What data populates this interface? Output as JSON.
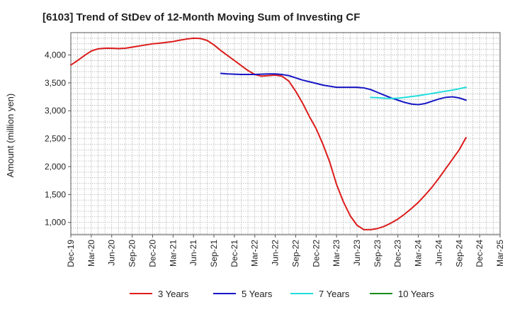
{
  "chart_data": {
    "type": "line",
    "title": "[6103]  Trend of StDev of 12-Month Moving Sum of Investing CF",
    "ylabel": "Amount (million yen)",
    "xlabel": "",
    "ylim": [
      780,
      4400
    ],
    "yticks": [
      1000,
      1500,
      2000,
      2500,
      3000,
      3500,
      4000
    ],
    "ytick_labels": [
      "1,000",
      "1,500",
      "2,000",
      "2,500",
      "3,000",
      "3,500",
      "4,000"
    ],
    "categories": [
      "Dec-19",
      "Mar-20",
      "Jun-20",
      "Sep-20",
      "Dec-20",
      "Mar-21",
      "Jun-21",
      "Sep-21",
      "Dec-21",
      "Mar-22",
      "Jun-22",
      "Sep-22",
      "Dec-22",
      "Mar-23",
      "Jun-23",
      "Sep-23",
      "Dec-23",
      "Mar-24",
      "Jun-24",
      "Sep-24",
      "Dec-24",
      "Mar-25"
    ],
    "grid": true,
    "legend_position": "bottom",
    "series": [
      {
        "name": "3 Years",
        "color": "#dd1c1c",
        "points": [
          [
            "Dec-19",
            3820
          ],
          [
            "Jan-20",
            3900
          ],
          [
            "Feb-20",
            3990
          ],
          [
            "Mar-20",
            4070
          ],
          [
            "Apr-20",
            4110
          ],
          [
            "May-20",
            4120
          ],
          [
            "Jun-20",
            4120
          ],
          [
            "Jul-20",
            4115
          ],
          [
            "Aug-20",
            4120
          ],
          [
            "Sep-20",
            4140
          ],
          [
            "Oct-20",
            4160
          ],
          [
            "Nov-20",
            4180
          ],
          [
            "Dec-20",
            4200
          ],
          [
            "Jan-21",
            4210
          ],
          [
            "Feb-21",
            4225
          ],
          [
            "Mar-21",
            4240
          ],
          [
            "Apr-21",
            4265
          ],
          [
            "May-21",
            4285
          ],
          [
            "Jun-21",
            4300
          ],
          [
            "Jul-21",
            4295
          ],
          [
            "Aug-21",
            4260
          ],
          [
            "Sep-21",
            4180
          ],
          [
            "Oct-21",
            4080
          ],
          [
            "Nov-21",
            3990
          ],
          [
            "Dec-21",
            3900
          ],
          [
            "Jan-22",
            3810
          ],
          [
            "Feb-22",
            3720
          ],
          [
            "Mar-22",
            3650
          ],
          [
            "Apr-22",
            3620
          ],
          [
            "May-22",
            3630
          ],
          [
            "Jun-22",
            3640
          ],
          [
            "Jul-22",
            3620
          ],
          [
            "Aug-22",
            3530
          ],
          [
            "Sep-22",
            3350
          ],
          [
            "Oct-22",
            3140
          ],
          [
            "Nov-22",
            2900
          ],
          [
            "Dec-22",
            2680
          ],
          [
            "Jan-23",
            2400
          ],
          [
            "Feb-23",
            2080
          ],
          [
            "Mar-23",
            1680
          ],
          [
            "Apr-23",
            1370
          ],
          [
            "May-23",
            1120
          ],
          [
            "Jun-23",
            950
          ],
          [
            "Jul-23",
            870
          ],
          [
            "Aug-23",
            870
          ],
          [
            "Sep-23",
            890
          ],
          [
            "Oct-23",
            930
          ],
          [
            "Nov-23",
            990
          ],
          [
            "Dec-23",
            1060
          ],
          [
            "Jan-24",
            1150
          ],
          [
            "Feb-24",
            1250
          ],
          [
            "Mar-24",
            1360
          ],
          [
            "Apr-24",
            1490
          ],
          [
            "May-24",
            1630
          ],
          [
            "Jun-24",
            1790
          ],
          [
            "Jul-24",
            1960
          ],
          [
            "Aug-24",
            2130
          ],
          [
            "Sep-24",
            2300
          ],
          [
            "Oct-24",
            2520
          ]
        ]
      },
      {
        "name": "5 Years",
        "color": "#1616c6",
        "points": [
          [
            "Oct-21",
            3670
          ],
          [
            "Nov-21",
            3660
          ],
          [
            "Dec-21",
            3655
          ],
          [
            "Jan-22",
            3650
          ],
          [
            "Feb-22",
            3650
          ],
          [
            "Mar-22",
            3650
          ],
          [
            "Apr-22",
            3655
          ],
          [
            "May-22",
            3660
          ],
          [
            "Jun-22",
            3660
          ],
          [
            "Jul-22",
            3650
          ],
          [
            "Aug-22",
            3630
          ],
          [
            "Sep-22",
            3590
          ],
          [
            "Oct-22",
            3550
          ],
          [
            "Nov-22",
            3520
          ],
          [
            "Dec-22",
            3490
          ],
          [
            "Jan-23",
            3460
          ],
          [
            "Feb-23",
            3440
          ],
          [
            "Mar-23",
            3420
          ],
          [
            "Apr-23",
            3420
          ],
          [
            "May-23",
            3420
          ],
          [
            "Jun-23",
            3420
          ],
          [
            "Jul-23",
            3410
          ],
          [
            "Aug-23",
            3380
          ],
          [
            "Sep-23",
            3330
          ],
          [
            "Oct-23",
            3280
          ],
          [
            "Nov-23",
            3230
          ],
          [
            "Dec-23",
            3190
          ],
          [
            "Jan-24",
            3150
          ],
          [
            "Feb-24",
            3120
          ],
          [
            "Mar-24",
            3110
          ],
          [
            "Apr-24",
            3130
          ],
          [
            "May-24",
            3170
          ],
          [
            "Jun-24",
            3210
          ],
          [
            "Jul-24",
            3240
          ],
          [
            "Aug-24",
            3250
          ],
          [
            "Sep-24",
            3230
          ],
          [
            "Oct-24",
            3190
          ]
        ]
      },
      {
        "name": "7 Years",
        "color": "#22dddd",
        "points": [
          [
            "Aug-23",
            3240
          ],
          [
            "Sep-23",
            3235
          ],
          [
            "Oct-23",
            3225
          ],
          [
            "Nov-23",
            3220
          ],
          [
            "Dec-23",
            3225
          ],
          [
            "Jan-24",
            3240
          ],
          [
            "Feb-24",
            3255
          ],
          [
            "Mar-24",
            3270
          ],
          [
            "Apr-24",
            3290
          ],
          [
            "May-24",
            3310
          ],
          [
            "Jun-24",
            3330
          ],
          [
            "Jul-24",
            3350
          ],
          [
            "Aug-24",
            3370
          ],
          [
            "Sep-24",
            3395
          ],
          [
            "Oct-24",
            3420
          ]
        ]
      },
      {
        "name": "10 Years",
        "color": "#1c8c1c",
        "points": []
      }
    ]
  }
}
